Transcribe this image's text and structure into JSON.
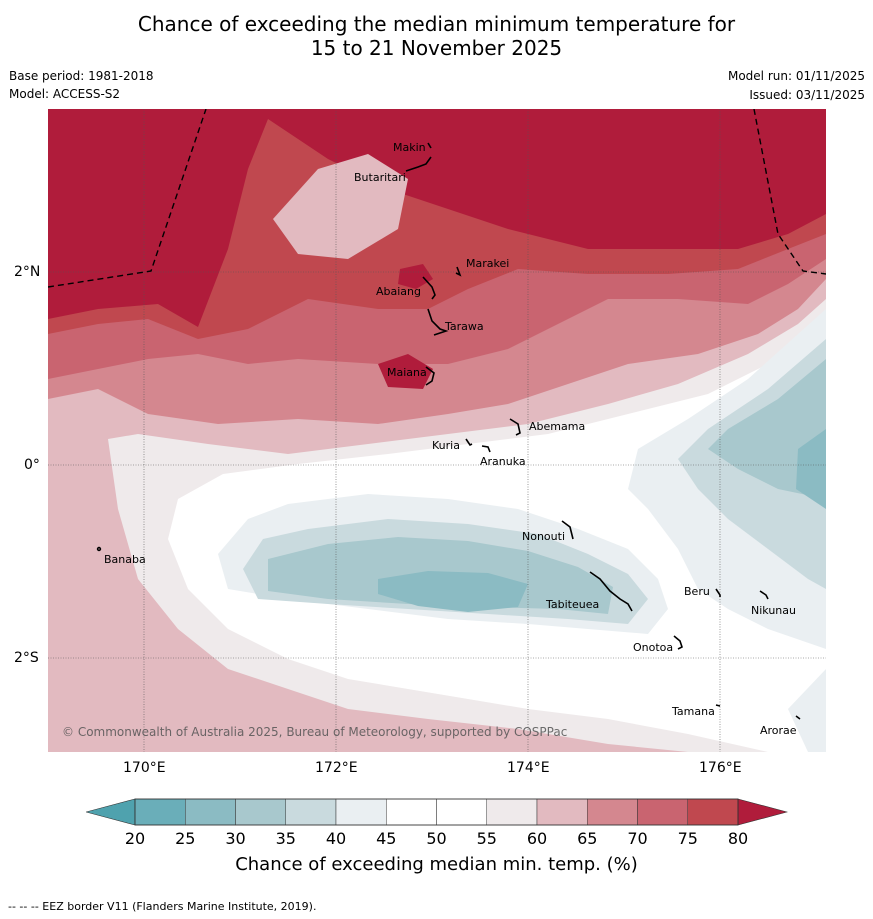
{
  "title_line1": "Chance of exceeding the median minimum temperature for",
  "title_line2": "15 to 21 November 2025",
  "base_period": "Base period: 1981-2018",
  "model": "Model: ACCESS-S2",
  "model_run": "Model run: 01/11/2025",
  "issued": "Issued: 03/11/2025",
  "copyright": "© Commonwealth of Australia 2025, Bureau of Meteorology, supported by COSPPac",
  "lat_labels": [
    "2°N",
    "0°",
    "2°S"
  ],
  "lon_labels": [
    "170°E",
    "172°E",
    "174°E",
    "176°E"
  ],
  "places": [
    "Makin",
    "Butaritari",
    "Marakei",
    "Abaiang",
    "Tarawa",
    "Maiana",
    "Abemama",
    "Kuria",
    "Aranuka",
    "Nonouti",
    "Banaba",
    "Beru",
    "Nikunau",
    "Tabiteuea",
    "Onotoa",
    "Tamana",
    "Arorae"
  ],
  "colorbar": {
    "labels": [
      "20",
      "25",
      "30",
      "35",
      "40",
      "45",
      "50",
      "55",
      "60",
      "65",
      "70",
      "75",
      "80"
    ],
    "colors": [
      "#6aaeb9",
      "#8bbbc3",
      "#a8c8cd",
      "#c9dade",
      "#eaeff2",
      "#ffffff",
      "#ffffff",
      "#efeaeb",
      "#e2bac0",
      "#d4878f",
      "#c96470",
      "#c0484f"
    ],
    "low_color": "#4fa2ae",
    "high_color": "#b01c3b",
    "title": "Chance of exceeding median min. temp. (%)"
  },
  "footer": "--  --  -- EEZ border V11 (Flanders Marine Institute, 2019)."
}
